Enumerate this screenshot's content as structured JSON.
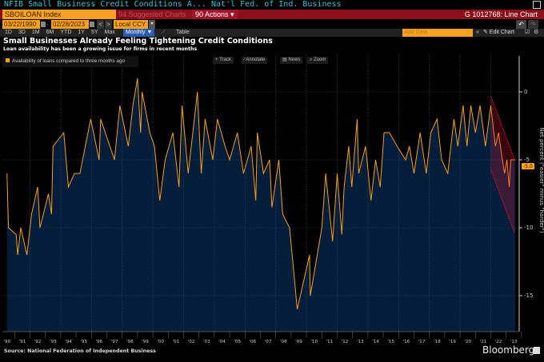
{
  "header": {
    "title": "NFIB Small Business Credit Conditions A...",
    "source_name": "Nat'l Fed. of Ind. Business"
  },
  "command": {
    "ticker": "SBOILOAN Index",
    "suggested": "94 Suggested Charts",
    "actions": "90 Actions ▾",
    "chart_id": "G 1012768: Line Chart"
  },
  "dates": {
    "start": "03/22/1990",
    "end": "02/28/2023",
    "currency": "Local CCY",
    "prev": "<",
    "next": ">",
    "sep": "-"
  },
  "ranges": [
    "1D",
    "3D",
    "1M",
    "6M",
    "YTD",
    "1Y",
    "5Y",
    "Max"
  ],
  "frequency": "Monthly ▼",
  "table_label": "Table",
  "add_data_placeholder": "Add Data",
  "edit_chart": "✎ Edit Chart",
  "collapse": "«",
  "tools": [
    "+ Track",
    "∕ Annotate",
    "▤ News",
    "⌕ Zoom"
  ],
  "footer": {
    "source": "Source: National Federation of Independent Business",
    "brand": "Bloomberg"
  },
  "colors": {
    "line": "#f5a122",
    "fill": "#031d3a",
    "trend": "#e0192e",
    "accent": "#f5a122"
  },
  "chart_data": {
    "type": "area",
    "title": "Small Businesses Already Feeling Tightening Credit Conditions",
    "subtitle": "Loan availability has been a growing issue for firms in recent months",
    "legend": [
      "Availability of loans compared to three months ago"
    ],
    "legend_position": "top-left",
    "ylabel": "Net percent (\"easier\" minus \"harder\")",
    "ylim": [
      -17.6,
      2
    ],
    "yticks": [
      0,
      -5,
      -10,
      -15
    ],
    "xlim": [
      1990,
      2023.3
    ],
    "xticks": [
      "'90",
      "'91",
      "'92",
      "'93",
      "'94",
      "'95",
      "'96",
      "'97",
      "'98",
      "'99",
      "'00",
      "'01",
      "'02",
      "'03",
      "'04",
      "'05",
      "'06",
      "'07",
      "'08",
      "'09",
      "'10",
      "'11",
      "'12",
      "'13",
      "'14",
      "'15",
      "'16",
      "'17",
      "'18",
      "'19",
      "'20",
      "'21",
      "'22",
      "'23"
    ],
    "grid": true,
    "last_value_label": "-5.0",
    "points": [
      [
        1990.0,
        -6
      ],
      [
        1990.1,
        -10
      ],
      [
        1990.6,
        -10.5
      ],
      [
        1990.7,
        -12
      ],
      [
        1990.9,
        -10
      ],
      [
        1991.3,
        -12
      ],
      [
        1991.6,
        -9
      ],
      [
        1992.0,
        -7
      ],
      [
        1992.15,
        -10
      ],
      [
        1992.7,
        -7.5
      ],
      [
        1992.9,
        -9
      ],
      [
        1993.0,
        -4
      ],
      [
        1993.7,
        -3
      ],
      [
        1994.0,
        -7
      ],
      [
        1994.4,
        -6
      ],
      [
        1994.75,
        -6
      ],
      [
        1995.1,
        -4
      ],
      [
        1995.45,
        -2
      ],
      [
        1996.0,
        -5
      ],
      [
        1996.1,
        -2
      ],
      [
        1997.0,
        -5
      ],
      [
        1997.35,
        -1
      ],
      [
        1997.9,
        -4
      ],
      [
        1998.2,
        -1
      ],
      [
        1998.5,
        1
      ],
      [
        1998.7,
        -3
      ],
      [
        1998.8,
        0
      ],
      [
        1999.3,
        -3
      ],
      [
        1999.6,
        -4
      ],
      [
        1999.95,
        -8
      ],
      [
        2000.3,
        -5
      ],
      [
        2000.8,
        -3
      ],
      [
        2001.2,
        -7
      ],
      [
        2001.4,
        -1
      ],
      [
        2001.8,
        -6
      ],
      [
        2002.4,
        0
      ],
      [
        2002.65,
        -6
      ],
      [
        2002.9,
        -2
      ],
      [
        2003.4,
        -5
      ],
      [
        2003.7,
        -2
      ],
      [
        2004.2,
        -4
      ],
      [
        2004.5,
        -5
      ],
      [
        2005.0,
        -3
      ],
      [
        2005.4,
        -6
      ],
      [
        2005.9,
        -4
      ],
      [
        2006.2,
        -8
      ],
      [
        2006.3,
        -3
      ],
      [
        2006.7,
        -6
      ],
      [
        2007.1,
        -5
      ],
      [
        2007.25,
        -8.5
      ],
      [
        2007.7,
        -5
      ],
      [
        2007.95,
        -9
      ],
      [
        2008.4,
        -10
      ],
      [
        2008.65,
        -13
      ],
      [
        2008.9,
        -16
      ],
      [
        2009.3,
        -14
      ],
      [
        2009.7,
        -12
      ],
      [
        2009.75,
        -15
      ],
      [
        2010.2,
        -12
      ],
      [
        2010.5,
        -10
      ],
      [
        2010.75,
        -6
      ],
      [
        2011.2,
        -11
      ],
      [
        2011.5,
        -6
      ],
      [
        2011.8,
        -10.5
      ],
      [
        2011.95,
        -7
      ],
      [
        2012.25,
        -4
      ],
      [
        2012.45,
        -7
      ],
      [
        2012.8,
        -2
      ],
      [
        2012.9,
        -6
      ],
      [
        2013.35,
        -4
      ],
      [
        2013.7,
        -8
      ],
      [
        2014.0,
        -5
      ],
      [
        2014.3,
        -7
      ],
      [
        2014.55,
        -3
      ],
      [
        2014.9,
        -3
      ],
      [
        2015.4,
        -4
      ],
      [
        2015.95,
        -5
      ],
      [
        2016.2,
        -4
      ],
      [
        2016.5,
        -6
      ],
      [
        2016.9,
        -3
      ],
      [
        2017.3,
        -6
      ],
      [
        2017.6,
        -3
      ],
      [
        2018.0,
        -2
      ],
      [
        2018.3,
        -5
      ],
      [
        2018.7,
        -6
      ],
      [
        2019.1,
        -2
      ],
      [
        2019.35,
        -4
      ],
      [
        2019.7,
        -1
      ],
      [
        2019.95,
        -4
      ],
      [
        2020.2,
        -1
      ],
      [
        2020.5,
        -3
      ],
      [
        2020.8,
        -1
      ],
      [
        2021.15,
        -4
      ],
      [
        2021.5,
        -1
      ],
      [
        2021.8,
        -4
      ],
      [
        2022.0,
        -3
      ],
      [
        2022.25,
        -5
      ],
      [
        2022.4,
        -6
      ],
      [
        2022.55,
        -5
      ],
      [
        2022.7,
        -7
      ],
      [
        2022.8,
        -5
      ],
      [
        2023.1,
        -5
      ]
    ],
    "trend_channel": {
      "upper": [
        [
          2021.5,
          -0.3
        ],
        [
          2023.05,
          -5
        ]
      ],
      "lower": [
        [
          2021.5,
          -5.7
        ],
        [
          2023.05,
          -10.4
        ]
      ]
    }
  }
}
